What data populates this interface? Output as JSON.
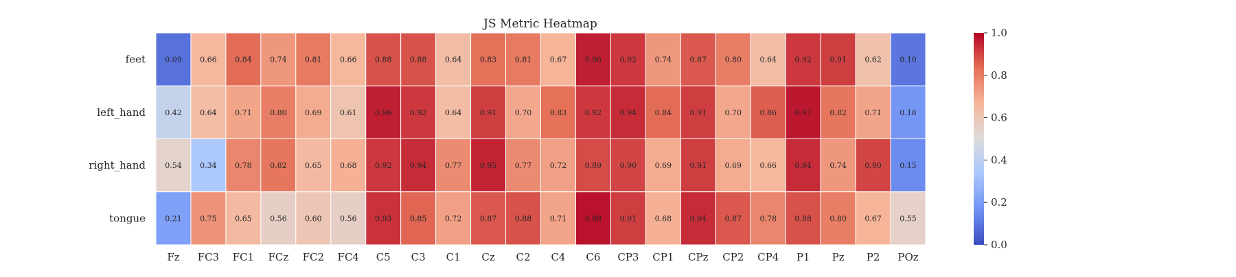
{
  "chart_data": {
    "type": "heatmap",
    "title": "JS Metric Heatmap",
    "xlabel": "",
    "ylabel": "",
    "rows": [
      "feet",
      "left_hand",
      "right_hand",
      "tongue"
    ],
    "columns": [
      "Fz",
      "FC3",
      "FC1",
      "FCz",
      "FC2",
      "FC4",
      "C5",
      "C3",
      "C1",
      "Cz",
      "C2",
      "C4",
      "C6",
      "CP3",
      "CP1",
      "CPz",
      "CP2",
      "CP4",
      "P1",
      "Pz",
      "P2",
      "POz"
    ],
    "values": [
      [
        0.09,
        0.66,
        0.84,
        0.74,
        0.81,
        0.66,
        0.88,
        0.88,
        0.64,
        0.83,
        0.81,
        0.67,
        0.96,
        0.92,
        0.74,
        0.87,
        0.8,
        0.64,
        0.92,
        0.91,
        0.62,
        0.1
      ],
      [
        0.42,
        0.64,
        0.71,
        0.8,
        0.69,
        0.61,
        0.96,
        0.92,
        0.64,
        0.91,
        0.7,
        0.83,
        0.92,
        0.94,
        0.84,
        0.91,
        0.7,
        0.86,
        0.97,
        0.82,
        0.71,
        0.18
      ],
      [
        0.54,
        0.34,
        0.78,
        0.82,
        0.65,
        0.68,
        0.92,
        0.94,
        0.77,
        0.95,
        0.77,
        0.72,
        0.89,
        0.9,
        0.69,
        0.91,
        0.69,
        0.66,
        0.94,
        0.74,
        0.9,
        0.15
      ],
      [
        0.21,
        0.75,
        0.65,
        0.56,
        0.6,
        0.56,
        0.93,
        0.85,
        0.72,
        0.87,
        0.88,
        0.71,
        0.98,
        0.91,
        0.68,
        0.94,
        0.87,
        0.78,
        0.88,
        0.8,
        0.67,
        0.55
      ]
    ],
    "value_labels": [
      [
        "0.09",
        "0.66",
        "0.84",
        "0.74",
        "0.81",
        "0.66",
        "0.88",
        "0.88",
        "0.64",
        "0.83",
        "0.81",
        "0.67",
        "0.96",
        "0.92",
        "0.74",
        "0.87",
        "0.80",
        "0.64",
        "0.92",
        "0.91",
        "0.62",
        "0.10"
      ],
      [
        "0.42",
        "0.64",
        "0.71",
        "0.80",
        "0.69",
        "0.61",
        "0.96",
        "0.92",
        "0.64",
        "0.91",
        "0.70",
        "0.83",
        "0.92",
        "0.94",
        "0.84",
        "0.91",
        "0.70",
        "0.86",
        "0.97",
        "0.82",
        "0.71",
        "0.18"
      ],
      [
        "0.54",
        "0.34",
        "0.78",
        "0.82",
        "0.65",
        "0.68",
        "0.92",
        "0.94",
        "0.77",
        "0.95",
        "0.77",
        "0.72",
        "0.89",
        "0.90",
        "0.69",
        "0.91",
        "0.69",
        "0.66",
        "0.94",
        "0.74",
        "0.90",
        "0.15"
      ],
      [
        "0.21",
        "0.75",
        "0.65",
        "0.56",
        "0.60",
        "0.56",
        "0.93",
        "0.85",
        "0.72",
        "0.87",
        "0.88",
        "0.71",
        "0.98",
        "0.91",
        "0.68",
        "0.94",
        "0.87",
        "0.78",
        "0.88",
        "0.80",
        "0.67",
        "0.55"
      ]
    ],
    "colormap": "coolwarm",
    "colormap_stops": [
      "#3b4cc0",
      "#7092f3",
      "#aac7fd",
      "#dddcdc",
      "#f6b69a",
      "#e57058",
      "#b40426"
    ],
    "vmin": 0.0,
    "vmax": 1.0,
    "colorbar_ticks": [
      "0.0",
      "0.2",
      "0.4",
      "0.6",
      "0.8",
      "1.0"
    ],
    "grid_line_color": "#ffffff"
  }
}
